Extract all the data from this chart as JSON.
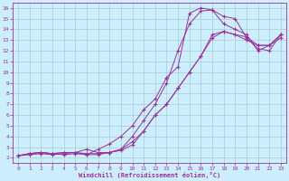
{
  "xlabel": "Windchill (Refroidissement éolien,°C)",
  "bg_color": "#cceeff",
  "grid_color": "#aacccc",
  "line_color": "#993399",
  "xlim": [
    -0.5,
    23.5
  ],
  "ylim": [
    1.5,
    16.5
  ],
  "xticks": [
    0,
    1,
    2,
    3,
    4,
    5,
    6,
    7,
    8,
    9,
    10,
    11,
    12,
    13,
    14,
    15,
    16,
    17,
    18,
    19,
    20,
    21,
    22,
    23
  ],
  "yticks": [
    2,
    3,
    4,
    5,
    6,
    7,
    8,
    9,
    10,
    11,
    12,
    13,
    14,
    15,
    16
  ],
  "line1_x": [
    0,
    1,
    2,
    3,
    4,
    5,
    6,
    7,
    8,
    9,
    10,
    11,
    12,
    13,
    14,
    15,
    16,
    17,
    18,
    19,
    20,
    21,
    22,
    23
  ],
  "line1_y": [
    2.2,
    2.4,
    2.5,
    2.4,
    2.3,
    2.4,
    2.3,
    2.8,
    3.3,
    4.0,
    5.0,
    6.5,
    7.5,
    9.5,
    10.5,
    15.5,
    16.0,
    15.8,
    15.2,
    15.0,
    13.2,
    12.2,
    12.0,
    13.5
  ],
  "line2_x": [
    0,
    1,
    2,
    3,
    4,
    5,
    6,
    7,
    8,
    9,
    10,
    11,
    12,
    13,
    14,
    15,
    16,
    17,
    18,
    19,
    20,
    21,
    22,
    23
  ],
  "line2_y": [
    2.2,
    2.4,
    2.5,
    2.4,
    2.5,
    2.5,
    2.3,
    2.3,
    2.5,
    2.8,
    4.0,
    5.5,
    7.0,
    9.0,
    12.0,
    14.5,
    15.7,
    15.8,
    14.5,
    14.0,
    13.5,
    12.0,
    12.5,
    13.2
  ],
  "line3_x": [
    0,
    1,
    2,
    3,
    4,
    5,
    6,
    7,
    8,
    9,
    10,
    11,
    12,
    13,
    14,
    15,
    16,
    17,
    18,
    19,
    20,
    21,
    22,
    23
  ],
  "line3_y": [
    2.2,
    2.3,
    2.4,
    2.3,
    2.4,
    2.5,
    2.8,
    2.5,
    2.5,
    2.8,
    3.5,
    4.5,
    6.0,
    7.0,
    8.5,
    10.0,
    11.5,
    13.5,
    13.8,
    13.5,
    13.3,
    12.5,
    12.5,
    13.5
  ],
  "line4_x": [
    0,
    1,
    2,
    3,
    4,
    5,
    6,
    7,
    8,
    9,
    10,
    11,
    12,
    13,
    14,
    15,
    16,
    17,
    18,
    19,
    20,
    21,
    22,
    23
  ],
  "line4_y": [
    2.2,
    2.4,
    2.5,
    2.4,
    2.5,
    2.5,
    2.4,
    2.4,
    2.5,
    2.7,
    3.2,
    4.5,
    6.0,
    7.0,
    8.5,
    10.0,
    11.5,
    13.2,
    13.8,
    13.5,
    13.0,
    12.5,
    12.5,
    13.5
  ]
}
